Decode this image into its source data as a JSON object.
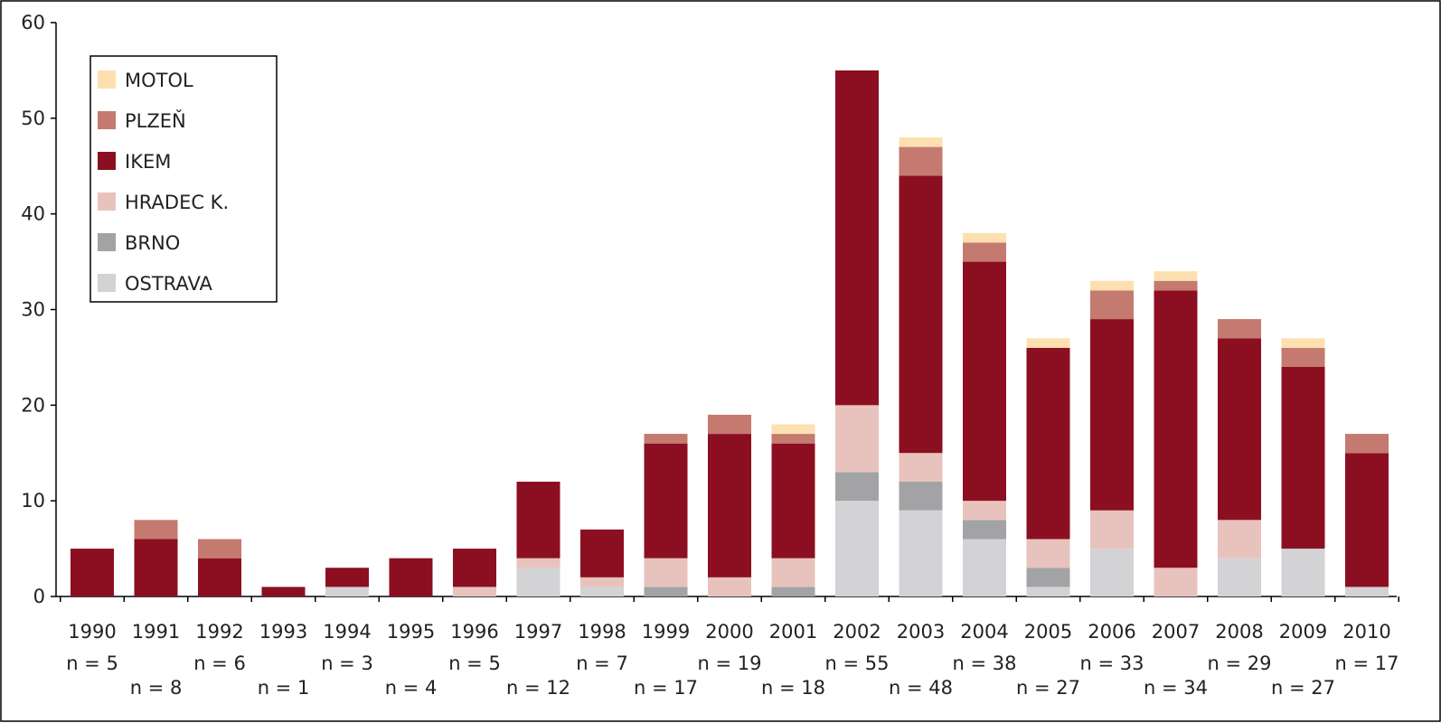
{
  "chart_data": {
    "type": "bar",
    "stacked": true,
    "categories": [
      "1990",
      "1991",
      "1992",
      "1993",
      "1994",
      "1995",
      "1996",
      "1997",
      "1998",
      "1999",
      "2000",
      "2001",
      "2002",
      "2003",
      "2004",
      "2005",
      "2006",
      "2007",
      "2008",
      "2009",
      "2010"
    ],
    "n_labels": [
      "n = 5",
      "n = 8",
      "n = 6",
      "n = 1",
      "n = 3",
      "n = 4",
      "n = 5",
      "n = 12",
      "n = 7",
      "n = 17",
      "n = 19",
      "n = 18",
      "n = 55",
      "n = 48",
      "n = 38",
      "n = 27",
      "n = 33",
      "n = 34",
      "n = 29",
      "n = 27",
      "n = 17"
    ],
    "series": [
      {
        "name": "OSTRAVA",
        "color": "#d3d3d5",
        "values": [
          0,
          0,
          0,
          0,
          1,
          0,
          0,
          3,
          1,
          0,
          0,
          0,
          10,
          9,
          6,
          1,
          5,
          0,
          4,
          5,
          1
        ]
      },
      {
        "name": "BRNO",
        "color": "#a3a3a5",
        "values": [
          0,
          0,
          0,
          0,
          0,
          0,
          0,
          0,
          0,
          1,
          0,
          1,
          3,
          3,
          2,
          2,
          0,
          0,
          0,
          0,
          0
        ]
      },
      {
        "name": "HRADEC K.",
        "color": "#e8c3bd",
        "values": [
          0,
          0,
          0,
          0,
          0,
          0,
          1,
          1,
          1,
          3,
          2,
          3,
          7,
          3,
          2,
          3,
          4,
          3,
          4,
          0,
          0
        ]
      },
      {
        "name": "IKEM",
        "color": "#8b0f21",
        "values": [
          5,
          6,
          4,
          1,
          2,
          4,
          4,
          8,
          5,
          12,
          15,
          12,
          35,
          29,
          25,
          20,
          20,
          29,
          19,
          19,
          14
        ]
      },
      {
        "name": "PLZEŇ",
        "color": "#c47a6f",
        "values": [
          0,
          2,
          2,
          0,
          0,
          0,
          0,
          0,
          0,
          1,
          2,
          1,
          0,
          3,
          2,
          0,
          3,
          1,
          2,
          2,
          2
        ]
      },
      {
        "name": "MOTOL",
        "color": "#fde0b0",
        "values": [
          0,
          0,
          0,
          0,
          0,
          0,
          0,
          0,
          0,
          0,
          0,
          1,
          0,
          1,
          1,
          1,
          1,
          1,
          0,
          1,
          0
        ]
      }
    ],
    "legend_order": [
      "MOTOL",
      "PLZEŇ",
      "IKEM",
      "HRADEC K.",
      "BRNO",
      "OSTRAVA"
    ],
    "ylim": [
      0,
      60
    ],
    "yticks": [
      0,
      10,
      20,
      30,
      40,
      50,
      60
    ],
    "legend_position": "top-left",
    "grid": false,
    "title": "",
    "xlabel": "",
    "ylabel": ""
  }
}
